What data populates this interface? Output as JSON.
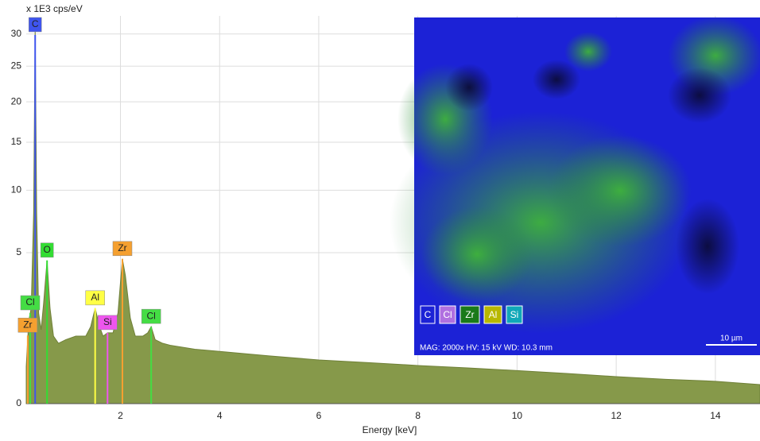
{
  "chart_data": {
    "type": "area",
    "y_label": "x 1E3 cps/eV",
    "x_label": "Energy [keV]",
    "yscale": "sqrt",
    "grid": true,
    "color": "#86994a",
    "xlim": [
      0.1,
      14.9
    ],
    "ylim": [
      0,
      33
    ],
    "xticks": [
      2,
      4,
      6,
      8,
      10,
      12,
      14
    ],
    "yticks": [
      0,
      5,
      10,
      15,
      20,
      25,
      30
    ],
    "x": [
      0.1,
      0.15,
      0.2,
      0.25,
      0.28,
      0.31,
      0.35,
      0.4,
      0.45,
      0.52,
      0.58,
      0.65,
      0.75,
      0.9,
      1.1,
      1.3,
      1.4,
      1.49,
      1.58,
      1.65,
      1.74,
      1.85,
      1.95,
      2.04,
      2.1,
      2.2,
      2.3,
      2.45,
      2.55,
      2.62,
      2.7,
      2.85,
      3,
      3.5,
      4,
      5,
      6,
      7,
      8,
      9,
      10,
      11,
      12,
      13,
      14,
      14.9
    ],
    "values": [
      0.3,
      1.5,
      2.0,
      8,
      31,
      8,
      1.8,
      1.2,
      2.2,
      4.5,
      2.0,
      1.0,
      0.8,
      0.9,
      1.0,
      1.0,
      1.3,
      2.0,
      1.3,
      1.0,
      1.1,
      1.1,
      1.8,
      4.6,
      3.6,
      1.6,
      1.0,
      1.0,
      1.1,
      1.3,
      0.9,
      0.8,
      0.75,
      0.65,
      0.6,
      0.5,
      0.42,
      0.37,
      0.32,
      0.28,
      0.24,
      0.2,
      0.16,
      0.13,
      0.11,
      0.08
    ],
    "annotations": [
      {
        "text": "C",
        "x": 0.28,
        "color": "#3f55ee"
      },
      {
        "text": "O",
        "x": 0.52,
        "color": "#33dd33"
      },
      {
        "text": "Al",
        "x": 1.49,
        "color": "#ffff44"
      },
      {
        "text": "Si",
        "x": 1.74,
        "color": "#ee55ee"
      },
      {
        "text": "Zr",
        "x": 2.04,
        "color": "#f5a030"
      },
      {
        "text": "Cl",
        "x": 2.62,
        "color": "#44dd44"
      },
      {
        "text": "Cl",
        "x": 0.18,
        "color": "#44dd44"
      },
      {
        "text": "Zr",
        "x": 0.13,
        "color": "#f5a030"
      }
    ]
  },
  "inset": {
    "legend": [
      "C",
      "Cl",
      "Zr",
      "Al",
      "Si"
    ],
    "info": "MAG: 2000x   HV: 15 kV   WD: 10.3 mm",
    "scale_bar": "10 µm"
  }
}
